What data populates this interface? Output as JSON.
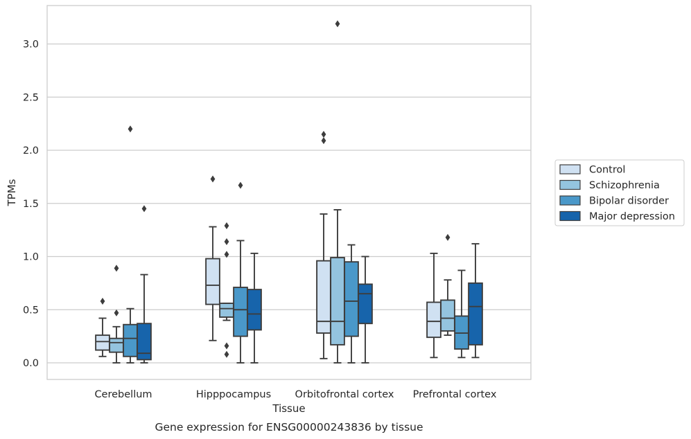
{
  "chart_data": {
    "type": "box",
    "caption": "Gene expression for ENSG00000243836 by tissue",
    "xlabel": "Tissue",
    "ylabel": "TPMs",
    "ylim": [
      -0.16,
      3.37
    ],
    "yticks": [
      0.0,
      0.5,
      1.0,
      1.5,
      2.0,
      2.5,
      3.0
    ],
    "ytick_labels": [
      "0.0",
      "0.5",
      "1.0",
      "1.5",
      "2.0",
      "2.5",
      "3.0"
    ],
    "grid": true,
    "legend_position": "right",
    "categories": [
      "Cerebellum",
      "Hipppocampus",
      "Orbitofrontal cortex",
      "Prefrontal cortex"
    ],
    "series": [
      {
        "name": "Control",
        "color": "#d0e1f2",
        "boxes": [
          {
            "whisker_low": 0.06,
            "q1": 0.12,
            "median": 0.2,
            "q3": 0.26,
            "whisker_high": 0.42,
            "outliers": [
              0.58
            ]
          },
          {
            "whisker_low": 0.21,
            "q1": 0.55,
            "median": 0.73,
            "q3": 0.98,
            "whisker_high": 1.28,
            "outliers": [
              1.73
            ]
          },
          {
            "whisker_low": 0.04,
            "q1": 0.28,
            "median": 0.39,
            "q3": 0.96,
            "whisker_high": 1.4,
            "outliers": [
              2.09,
              2.15
            ]
          },
          {
            "whisker_low": 0.05,
            "q1": 0.24,
            "median": 0.39,
            "q3": 0.57,
            "whisker_high": 1.03,
            "outliers": []
          }
        ]
      },
      {
        "name": "Schizophrenia",
        "color": "#94c4df",
        "boxes": [
          {
            "whisker_low": 0.0,
            "q1": 0.1,
            "median": 0.19,
            "q3": 0.23,
            "whisker_high": 0.34,
            "outliers": [
              0.47,
              0.89
            ]
          },
          {
            "whisker_low": 0.4,
            "q1": 0.43,
            "median": 0.51,
            "q3": 0.56,
            "whisker_high": 0.56,
            "outliers": [
              0.08,
              0.16,
              1.02,
              1.14,
              1.29
            ]
          },
          {
            "whisker_low": 0.0,
            "q1": 0.17,
            "median": 0.39,
            "q3": 0.99,
            "whisker_high": 1.44,
            "outliers": [
              3.19
            ]
          },
          {
            "whisker_low": 0.26,
            "q1": 0.3,
            "median": 0.42,
            "q3": 0.59,
            "whisker_high": 0.78,
            "outliers": [
              1.18
            ]
          }
        ]
      },
      {
        "name": "Bipolar disorder",
        "color": "#4a98c9",
        "boxes": [
          {
            "whisker_low": 0.0,
            "q1": 0.06,
            "median": 0.23,
            "q3": 0.36,
            "whisker_high": 0.51,
            "outliers": [
              2.2
            ]
          },
          {
            "whisker_low": 0.0,
            "q1": 0.25,
            "median": 0.5,
            "q3": 0.71,
            "whisker_high": 1.15,
            "outliers": [
              1.67
            ]
          },
          {
            "whisker_low": 0.0,
            "q1": 0.25,
            "median": 0.58,
            "q3": 0.95,
            "whisker_high": 1.11,
            "outliers": []
          },
          {
            "whisker_low": 0.05,
            "q1": 0.13,
            "median": 0.28,
            "q3": 0.44,
            "whisker_high": 0.87,
            "outliers": []
          }
        ]
      },
      {
        "name": "Major depression",
        "color": "#1764ab",
        "boxes": [
          {
            "whisker_low": 0.0,
            "q1": 0.03,
            "median": 0.09,
            "q3": 0.37,
            "whisker_high": 0.83,
            "outliers": [
              1.45
            ]
          },
          {
            "whisker_low": 0.0,
            "q1": 0.31,
            "median": 0.46,
            "q3": 0.69,
            "whisker_high": 1.03,
            "outliers": []
          },
          {
            "whisker_low": 0.0,
            "q1": 0.37,
            "median": 0.65,
            "q3": 0.74,
            "whisker_high": 1.0,
            "outliers": []
          },
          {
            "whisker_low": 0.05,
            "q1": 0.17,
            "median": 0.53,
            "q3": 0.75,
            "whisker_high": 1.12,
            "outliers": []
          }
        ]
      }
    ]
  },
  "style": {
    "line_color": "#3d3d3d",
    "grid_color": "#cccccc",
    "frame_color": "#cccccc"
  }
}
